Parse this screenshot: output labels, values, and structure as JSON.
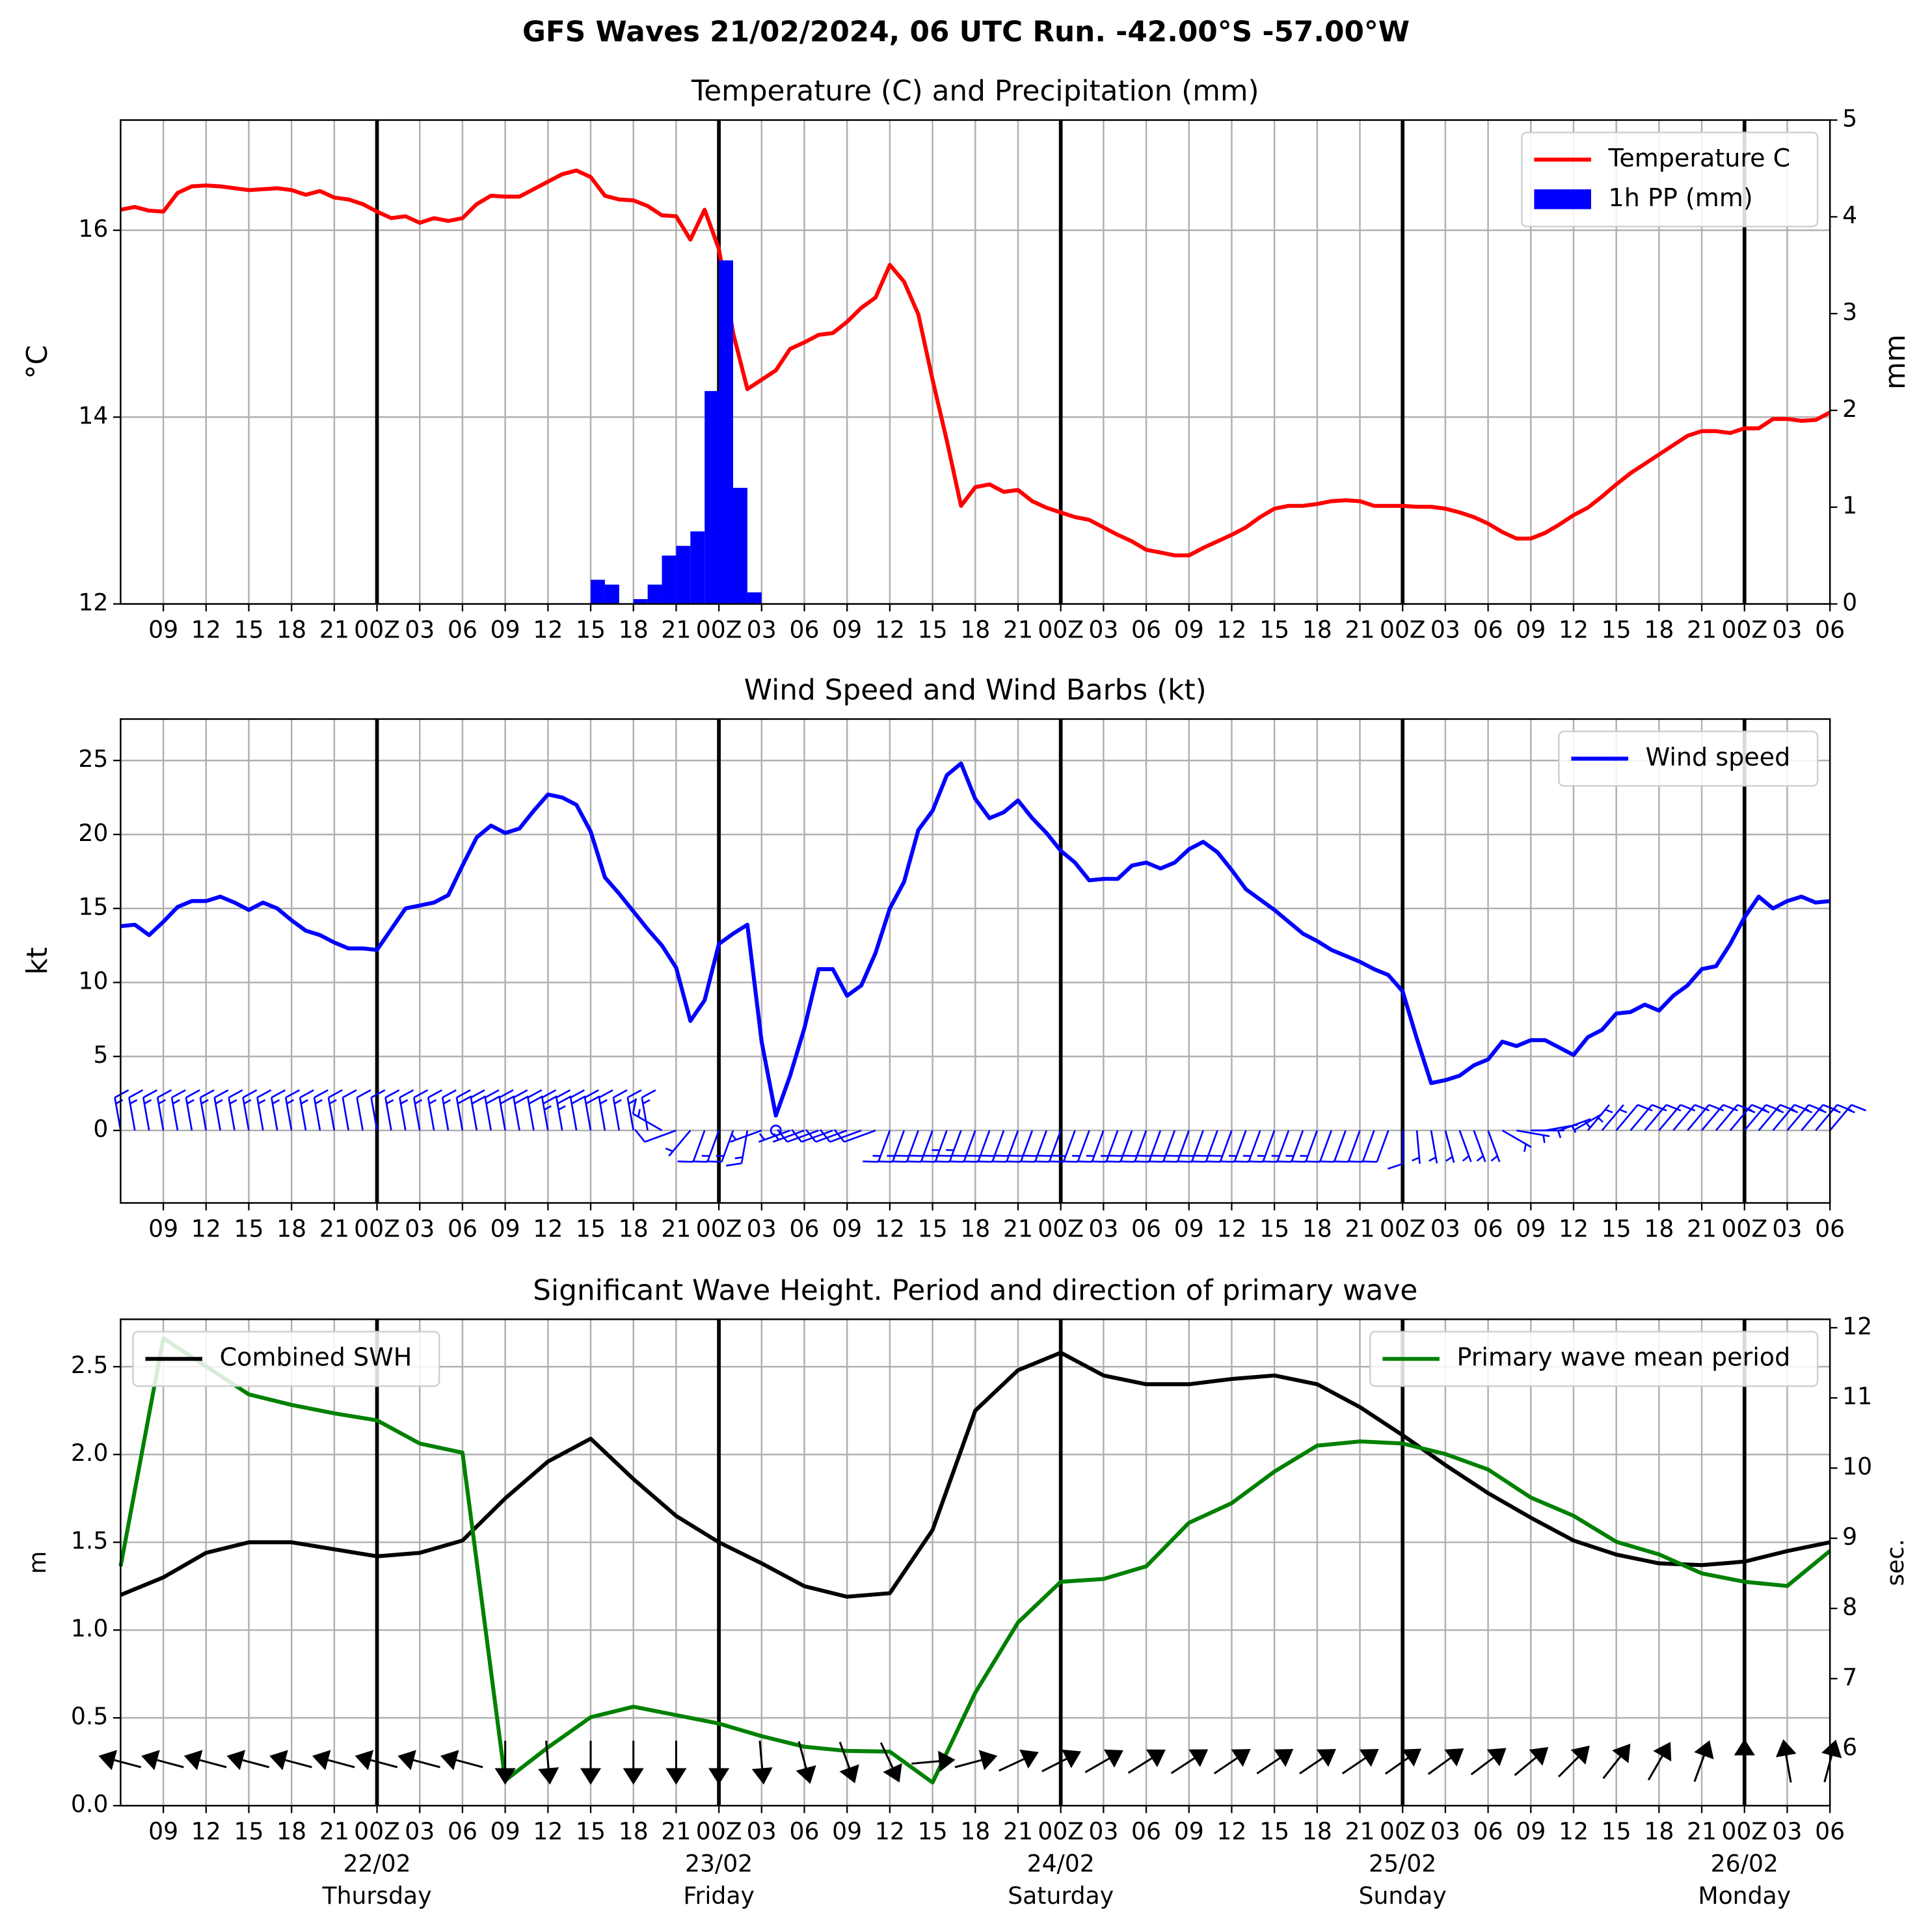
{
  "title": "GFS Waves 21/02/2024, 06 UTC Run. -42.00°S -57.00°W",
  "x_axis": {
    "xlim": [
      0,
      120
    ],
    "xticks": [
      {
        "value": 3,
        "label": "09"
      },
      {
        "value": 6,
        "label": "12"
      },
      {
        "value": 9,
        "label": "15"
      },
      {
        "value": 12,
        "label": "18"
      },
      {
        "value": 15,
        "label": "21"
      },
      {
        "value": 18,
        "label": "00Z"
      },
      {
        "value": 21,
        "label": "03"
      },
      {
        "value": 24,
        "label": "06"
      },
      {
        "value": 27,
        "label": "09"
      },
      {
        "value": 30,
        "label": "12"
      },
      {
        "value": 33,
        "label": "15"
      },
      {
        "value": 36,
        "label": "18"
      },
      {
        "value": 39,
        "label": "21"
      },
      {
        "value": 42,
        "label": "00Z"
      },
      {
        "value": 45,
        "label": "03"
      },
      {
        "value": 48,
        "label": "06"
      },
      {
        "value": 51,
        "label": "09"
      },
      {
        "value": 54,
        "label": "12"
      },
      {
        "value": 57,
        "label": "15"
      },
      {
        "value": 60,
        "label": "18"
      },
      {
        "value": 63,
        "label": "21"
      },
      {
        "value": 66,
        "label": "00Z"
      },
      {
        "value": 69,
        "label": "03"
      },
      {
        "value": 72,
        "label": "06"
      },
      {
        "value": 75,
        "label": "09"
      },
      {
        "value": 78,
        "label": "12"
      },
      {
        "value": 81,
        "label": "15"
      },
      {
        "value": 84,
        "label": "18"
      },
      {
        "value": 87,
        "label": "21"
      },
      {
        "value": 90,
        "label": "00Z"
      },
      {
        "value": 93,
        "label": "03"
      },
      {
        "value": 96,
        "label": "06"
      },
      {
        "value": 99,
        "label": "09"
      },
      {
        "value": 102,
        "label": "12"
      },
      {
        "value": 105,
        "label": "15"
      },
      {
        "value": 108,
        "label": "18"
      },
      {
        "value": 111,
        "label": "21"
      },
      {
        "value": 114,
        "label": "00Z"
      },
      {
        "value": 117,
        "label": "03"
      },
      {
        "value": 120,
        "label": "06"
      }
    ],
    "days": [
      {
        "x": 18,
        "date": "22/02",
        "weekday": "Thursday"
      },
      {
        "x": 42,
        "date": "23/02",
        "weekday": "Friday"
      },
      {
        "x": 66,
        "date": "24/02",
        "weekday": "Saturday"
      },
      {
        "x": 90,
        "date": "25/02",
        "weekday": "Sunday"
      },
      {
        "x": 114,
        "date": "26/02",
        "weekday": "Monday"
      }
    ]
  },
  "chart_data": [
    {
      "type": "line",
      "title": "Temperature (C) and Precipitation (mm)",
      "ylabel": "°C",
      "y2label": "mm",
      "ylim": [
        12,
        17.18
      ],
      "yticks": [
        12,
        14,
        16
      ],
      "y2lim": [
        0,
        5
      ],
      "y2ticks": [
        0,
        1,
        2,
        3,
        4,
        5
      ],
      "grid": true,
      "legend": "upper right",
      "x": [
        0,
        1,
        2,
        3,
        4,
        5,
        6,
        7,
        8,
        9,
        10,
        11,
        12,
        13,
        14,
        15,
        16,
        17,
        18,
        19,
        20,
        21,
        22,
        23,
        24,
        25,
        26,
        27,
        28,
        29,
        30,
        31,
        32,
        33,
        34,
        35,
        36,
        37,
        38,
        39,
        40,
        41,
        42,
        43,
        44,
        45,
        46,
        47,
        48,
        49,
        50,
        51,
        52,
        53,
        54,
        55,
        56,
        57,
        58,
        59,
        60,
        61,
        62,
        63,
        64,
        65,
        66,
        67,
        68,
        69,
        70,
        71,
        72,
        73,
        74,
        75,
        76,
        77,
        78,
        79,
        80,
        81,
        82,
        83,
        84,
        85,
        86,
        87,
        88,
        89,
        90,
        91,
        92,
        93,
        94,
        95,
        96,
        97,
        98,
        99,
        100,
        101,
        102,
        103,
        104,
        105,
        106,
        107,
        108,
        109,
        110,
        111,
        112,
        113,
        114,
        115,
        116,
        117,
        118,
        119,
        120
      ],
      "series": [
        {
          "name": "Temperature C",
          "type": "line",
          "color": "#ff0000",
          "values": [
            16.22,
            16.25,
            16.21,
            16.2,
            16.4,
            16.47,
            16.48,
            16.47,
            16.45,
            16.43,
            16.44,
            16.45,
            16.43,
            16.38,
            16.42,
            16.35,
            16.33,
            16.28,
            16.2,
            16.13,
            16.15,
            16.08,
            16.13,
            16.1,
            16.13,
            16.28,
            16.37,
            16.36,
            16.36,
            16.44,
            16.52,
            16.6,
            16.64,
            16.57,
            16.37,
            16.33,
            16.32,
            16.26,
            16.16,
            16.15,
            15.9,
            16.22,
            15.8,
            14.9,
            14.3,
            14.4,
            14.5,
            14.73,
            14.8,
            14.88,
            14.9,
            15.02,
            15.17,
            15.28,
            15.63,
            15.45,
            15.1,
            14.4,
            13.75,
            13.05,
            13.25,
            13.28,
            13.2,
            13.22,
            13.1,
            13.03,
            12.98,
            12.93,
            12.9,
            12.82,
            12.74,
            12.67,
            12.58,
            12.55,
            12.52,
            12.52,
            12.6,
            12.67,
            12.74,
            12.82,
            12.93,
            13.02,
            13.05,
            13.05,
            13.07,
            13.1,
            13.11,
            13.1,
            13.05,
            13.05,
            13.05,
            13.04,
            13.04,
            13.02,
            12.98,
            12.93,
            12.86,
            12.77,
            12.7,
            12.7,
            12.76,
            12.85,
            12.95,
            13.03,
            13.15,
            13.28,
            13.4,
            13.5,
            13.6,
            13.7,
            13.8,
            13.85,
            13.85,
            13.83,
            13.88,
            13.88,
            13.98,
            13.98,
            13.96,
            13.97,
            14.05
          ]
        },
        {
          "name": "1h PP (mm)",
          "type": "bar",
          "axis": "y2",
          "color": "#0000ff",
          "x": [
            33.5,
            34.5,
            36.5,
            37.5,
            38.5,
            39.5,
            40.5,
            41.5,
            42.5,
            43.5,
            44.5
          ],
          "values": [
            0.25,
            0.2,
            0.05,
            0.2,
            0.5,
            0.6,
            0.75,
            2.2,
            3.55,
            1.2,
            0.12
          ]
        }
      ]
    },
    {
      "type": "line",
      "title": "Wind Speed and Wind Barbs (kt)",
      "ylabel": "kt",
      "ylim": [
        -4.9,
        27.8
      ],
      "yticks": [
        0,
        5,
        10,
        15,
        20,
        25
      ],
      "grid": true,
      "legend": "upper right",
      "x": [
        0,
        1,
        2,
        3,
        4,
        5,
        6,
        7,
        8,
        9,
        10,
        11,
        12,
        13,
        14,
        15,
        16,
        17,
        18,
        19,
        20,
        21,
        22,
        23,
        24,
        25,
        26,
        27,
        28,
        29,
        30,
        31,
        32,
        33,
        34,
        35,
        36,
        37,
        38,
        39,
        40,
        41,
        42,
        43,
        44,
        45,
        46,
        47,
        48,
        49,
        50,
        51,
        52,
        53,
        54,
        55,
        56,
        57,
        58,
        59,
        60,
        61,
        62,
        63,
        64,
        65,
        66,
        67,
        68,
        69,
        70,
        71,
        72,
        73,
        74,
        75,
        76,
        77,
        78,
        79,
        80,
        81,
        82,
        83,
        84,
        85,
        86,
        87,
        88,
        89,
        90,
        91,
        92,
        93,
        94,
        95,
        96,
        97,
        98,
        99,
        100,
        101,
        102,
        103,
        104,
        105,
        106,
        107,
        108,
        109,
        110,
        111,
        112,
        113,
        114,
        115,
        116,
        117,
        118,
        119,
        120
      ],
      "series": [
        {
          "name": "Wind speed",
          "type": "line",
          "color": "#0000ff",
          "values": [
            13.8,
            13.9,
            13.2,
            14.1,
            15.1,
            15.5,
            15.5,
            15.8,
            15.4,
            14.9,
            15.4,
            15,
            14.2,
            13.5,
            13.2,
            12.7,
            12.3,
            12.3,
            12.2,
            13.6,
            15,
            15.2,
            15.4,
            15.9,
            17.9,
            19.8,
            20.6,
            20.1,
            20.4,
            21.6,
            22.7,
            22.5,
            22,
            20.2,
            17.1,
            16,
            14.8,
            13.6,
            12.5,
            11,
            7.4,
            8.8,
            12.6,
            13.3,
            13.9,
            6,
            1,
            3.7,
            6.9,
            10.9,
            10.9,
            9.1,
            9.8,
            12,
            15,
            16.8,
            20.3,
            21.6,
            24,
            24.8,
            22.4,
            21.1,
            21.5,
            22.3,
            21.1,
            20.1,
            18.9,
            18.1,
            16.9,
            17,
            17,
            17.9,
            18.1,
            17.7,
            18.1,
            19,
            19.5,
            18.8,
            17.6,
            16.3,
            15.6,
            14.9,
            14.1,
            13.3,
            12.8,
            12.2,
            11.8,
            11.4,
            10.9,
            10.5,
            9.4,
            6.2,
            3.2,
            3.4,
            3.7,
            4.4,
            4.8,
            6,
            5.7,
            6.1,
            6.1,
            5.6,
            5.1,
            6.3,
            6.8,
            7.9,
            8,
            8.5,
            8.1,
            9.1,
            9.8,
            10.9,
            11.1,
            12.6,
            14.4,
            15.8,
            15,
            15.5,
            15.8,
            15.4,
            15.5
          ]
        }
      ],
      "barbs": {
        "color": "#0000ff",
        "direction": [
          350,
          350,
          350,
          350,
          350,
          350,
          350,
          350,
          350,
          350,
          350,
          350,
          350,
          350,
          350,
          350,
          350,
          350,
          350,
          350,
          350,
          350,
          350,
          350,
          350,
          350,
          350,
          350,
          350,
          350,
          350,
          350,
          350,
          350,
          350,
          350,
          350,
          350,
          300,
          250,
          220,
          200,
          200,
          200,
          190,
          250,
          250,
          250,
          250,
          250,
          250,
          250,
          250,
          250,
          200,
          200,
          200,
          200,
          200,
          200,
          200,
          200,
          200,
          200,
          200,
          200,
          200,
          200,
          200,
          200,
          200,
          200,
          200,
          200,
          200,
          200,
          200,
          200,
          200,
          200,
          200,
          200,
          200,
          200,
          200,
          200,
          200,
          200,
          200,
          200,
          180,
          175,
          170,
          165,
          160,
          160,
          160,
          120,
          100,
          90,
          80,
          70,
          60,
          40,
          40,
          40,
          40,
          40,
          40,
          40,
          40,
          40,
          40,
          40,
          40,
          40,
          40,
          40,
          40,
          40,
          40
        ]
      }
    },
    {
      "type": "line",
      "title": "Significant Wave Height. Period and direction of primary wave",
      "ylabel": "m",
      "y2label": "sec.",
      "y2color": "#008000",
      "ylim": [
        0,
        2.77
      ],
      "yticks": [
        {
          "value": 0,
          "label": "0.0"
        },
        {
          "value": 0.5,
          "label": "0.5"
        },
        {
          "value": 1,
          "label": "1.0"
        },
        {
          "value": 1.5,
          "label": "1.5"
        },
        {
          "value": 2,
          "label": "2.0"
        },
        {
          "value": 2.5,
          "label": "2.5"
        }
      ],
      "y2lim": [
        5.19,
        12.12
      ],
      "y2ticks": [
        6,
        7,
        8,
        9,
        10,
        11,
        12
      ],
      "grid": true,
      "x": [
        0,
        3,
        6,
        9,
        12,
        15,
        18,
        21,
        24,
        27,
        30,
        33,
        36,
        39,
        42,
        45,
        48,
        51,
        54,
        57,
        60,
        63,
        66,
        69,
        72,
        75,
        78,
        81,
        84,
        87,
        90,
        93,
        96,
        99,
        102,
        105,
        108,
        111,
        114,
        117,
        120
      ],
      "series": [
        {
          "name": "Combined SWH",
          "type": "line",
          "color": "#000000",
          "legend": "upper left",
          "values": [
            1.2,
            1.3,
            1.44,
            1.5,
            1.5,
            1.46,
            1.42,
            1.44,
            1.51,
            1.75,
            1.96,
            2.09,
            1.86,
            1.65,
            1.5,
            1.38,
            1.25,
            1.19,
            1.21,
            1.57,
            2.25,
            2.48,
            2.58,
            2.45,
            2.4,
            2.4,
            2.43,
            2.45,
            2.4,
            2.27,
            2.11,
            1.94,
            1.78,
            1.64,
            1.51,
            1.43,
            1.38,
            1.37,
            1.39,
            1.45,
            1.5
          ]
        },
        {
          "name": "Primary wave mean period",
          "type": "line",
          "axis": "y2",
          "color": "#008000",
          "legend": "upper right",
          "values": [
            8.6,
            11.85,
            11.45,
            11.05,
            10.9,
            10.78,
            10.68,
            10.35,
            10.22,
            5.55,
            6.02,
            6.45,
            6.6,
            6.48,
            6.36,
            6.18,
            6.03,
            5.97,
            5.96,
            5.52,
            6.8,
            7.8,
            8.38,
            8.42,
            8.6,
            9.22,
            9.5,
            9.95,
            10.32,
            10.38,
            10.35,
            10.2,
            9.98,
            9.58,
            9.32,
            8.95,
            8.77,
            8.5,
            8.38,
            8.32,
            8.82
          ]
        }
      ],
      "wave_direction": {
        "color": "#000000",
        "values": [
          105,
          105,
          105,
          105,
          105,
          105,
          105,
          105,
          105,
          0,
          355,
          0,
          0,
          0,
          0,
          355,
          345,
          340,
          335,
          265,
          255,
          245,
          243,
          240,
          238,
          237,
          236,
          236,
          236,
          236,
          235,
          234,
          233,
          230,
          225,
          218,
          210,
          200,
          180,
          170,
          195
        ]
      }
    }
  ]
}
